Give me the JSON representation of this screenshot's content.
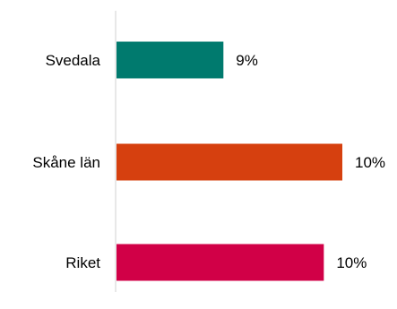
{
  "chart_data": {
    "type": "bar",
    "orientation": "horizontal",
    "title": "",
    "xlabel": "",
    "ylabel": "",
    "categories": [
      "Svedala",
      "Skåne län",
      "Riket"
    ],
    "values": [
      9,
      10,
      10
    ],
    "value_labels": [
      "9%",
      "10%",
      "10%"
    ],
    "colors": [
      "#007a6e",
      "#d6400f",
      "#d10047"
    ],
    "axis_color": "#d0d0d0",
    "grid": false,
    "legend": "none"
  }
}
